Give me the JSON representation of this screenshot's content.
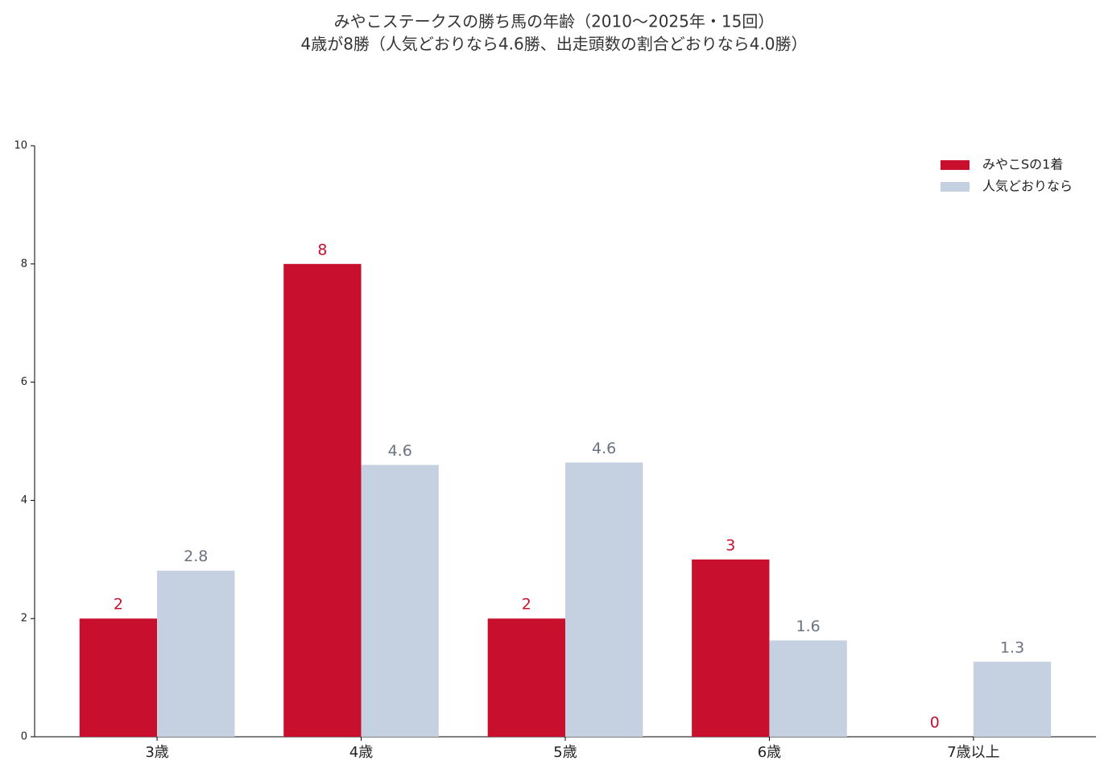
{
  "chart_data": {
    "type": "bar",
    "title": "みやこステークスの勝ち馬の年齢（2010〜2025年・15回）",
    "subtitle": "4歳が8勝（人気どおりなら4.6勝、出走頭数の割合どおりなら4.0勝）",
    "categories": [
      "3歳",
      "4歳",
      "5歳",
      "6歳",
      "7歳以上"
    ],
    "series": [
      {
        "name": "みやこSの1着",
        "color": "#c8102e",
        "label_color": "#c8102e",
        "values": [
          2,
          8,
          2,
          3,
          0
        ]
      },
      {
        "name": "人気どおりなら",
        "color": "#c5d1e0",
        "label_color": "#6b7280",
        "values": [
          2.81,
          4.6,
          4.64,
          1.63,
          1.27
        ],
        "value_labels": [
          "2.8",
          "4.6",
          "4.6",
          "1.6",
          "1.3"
        ]
      }
    ],
    "ylim": [
      0,
      10
    ],
    "yticks": [
      0,
      2,
      4,
      6,
      8,
      10
    ],
    "grid": false,
    "legend": "upper right"
  }
}
